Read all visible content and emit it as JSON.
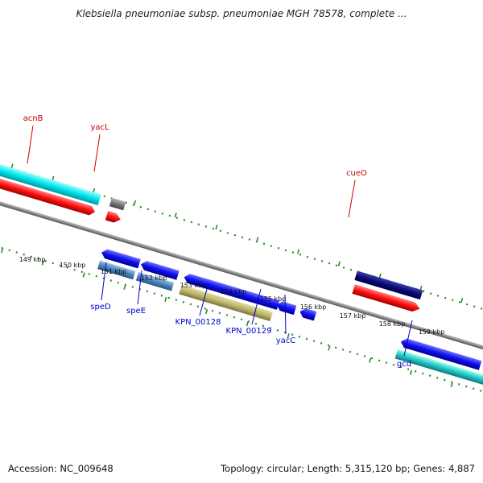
{
  "title": "Klebsiella pneumoniae subsp. pneumoniae MGH 78578, complete ...",
  "footer": {
    "accession": "Accession: NC_009648",
    "summary": "Topology: circular; Length: 5,315,120 bp; Genes: 4,887"
  },
  "colors": {
    "backbone": "#888888",
    "tick": "#2e8b2e",
    "top_label": "#cc0000",
    "bottom_label": "#0000cc"
  },
  "top_labels": [
    "acnB",
    "yacL",
    "cueO"
  ],
  "bottom_labels": [
    "speD",
    "speE",
    "KPN_00128",
    "KPN_00129",
    "yacC",
    "gcd"
  ],
  "scale_labels": [
    "149 kbp",
    "150 kbp",
    "151 kbp",
    "152 kbp",
    "153 kbp",
    "154 kbp",
    "155 kbp",
    "156 kbp",
    "157 kbp",
    "158 kbp",
    "159 kbp"
  ],
  "feature_colors": {
    "cyan": "#00e5ee",
    "red": "#ff1010",
    "gray": "#7a7a7a",
    "blue": "#1010ee",
    "steelblue": "#4a86c0",
    "khaki": "#bdb76b",
    "navy": "#0a0a80",
    "teal": "#20c8c8"
  }
}
